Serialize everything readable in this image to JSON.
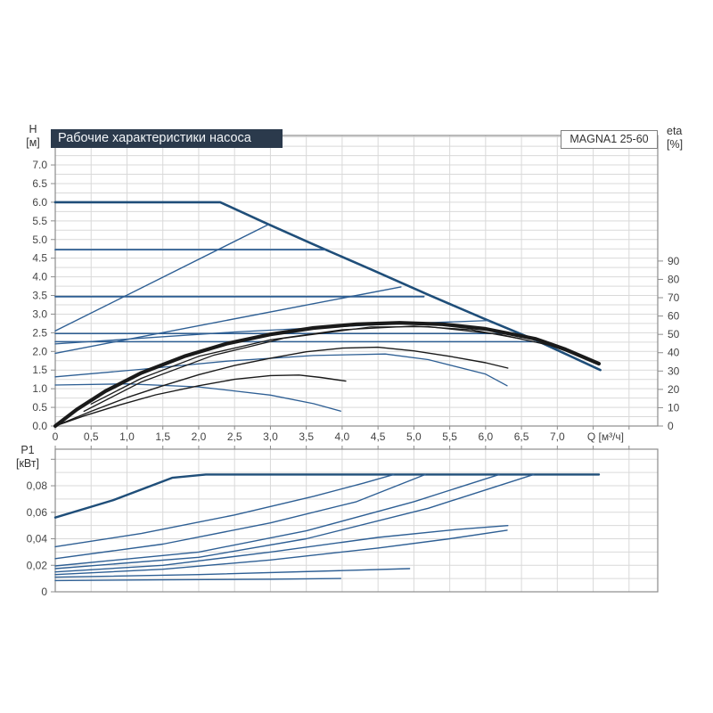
{
  "title_bar": {
    "text": "Рабочие характеристики насоса"
  },
  "model_badge": {
    "text": "MAGNA1 25-60"
  },
  "axis_corner_labels": {
    "h_line1": "H",
    "h_line2": "[м]",
    "eta_line1": "eta",
    "eta_line2": "[%]",
    "p1_line1": "P1",
    "p1_line2": "[кВт]",
    "q_label": "Q [м³/ч]"
  },
  "colors": {
    "title_bar_bg": "#2b3a4c",
    "curve_blue": "#2e5f94",
    "curve_blue_dark": "#1f4e79",
    "curve_black": "#1a1a1a",
    "grid": "#d9d9d9",
    "frame": "#8c8c8c",
    "tick_text": "#444444"
  },
  "chart_data": [
    {
      "id": "head_chart",
      "type": "line",
      "title": "Рабочие характеристики насоса",
      "x_axis": {
        "min": 0,
        "max": 8.4,
        "grid_step": 0.5,
        "tick_step": 0.5,
        "show_labels": true,
        "labels": [
          "0",
          "0,5",
          "1,0",
          "1,5",
          "2,0",
          "2,5",
          "3,0",
          "3,5",
          "4,0",
          "4,5",
          "5,0",
          "5,5",
          "6,0",
          "6,5",
          "7,0",
          "",
          ""
        ]
      },
      "y_left": {
        "name": "H [м]",
        "min": 0,
        "max": 7.79,
        "grid_step": 0.25,
        "tick_step": 0.5,
        "labels": [
          "0.0",
          "0.5",
          "1.0",
          "1.5",
          "2.0",
          "2.5",
          "3.0",
          "3.5",
          "4.0",
          "4.5",
          "5.0",
          "5.5",
          "6.0",
          "6.5",
          "7.0"
        ]
      },
      "y_right": {
        "name": "eta [%]",
        "min": 0,
        "max": 158.5,
        "tick_step": 10,
        "labels": [
          "0",
          "10",
          "20",
          "30",
          "40",
          "50",
          "60",
          "70",
          "80",
          "90"
        ]
      },
      "series": [
        {
          "name": "max-curve",
          "axis": "left",
          "color": "#1f4e79",
          "width": 2.6,
          "points": [
            [
              0,
              6.0
            ],
            [
              2.3,
              6.0
            ],
            [
              2.9,
              5.47
            ],
            [
              3.6,
              4.87
            ],
            [
              4.4,
              4.2
            ],
            [
              5.2,
              3.52
            ],
            [
              6.0,
              2.86
            ],
            [
              6.7,
              2.3
            ],
            [
              7.6,
              1.5
            ]
          ]
        },
        {
          "name": "prop-pressure-rise-high",
          "axis": "left",
          "color": "#2e5f94",
          "width": 1.4,
          "points": [
            [
              0,
              2.55
            ],
            [
              2.97,
              5.4
            ]
          ]
        },
        {
          "name": "prop-pressure-rise-mid",
          "axis": "left",
          "color": "#2e5f94",
          "width": 1.4,
          "points": [
            [
              0,
              1.95
            ],
            [
              4.82,
              3.73
            ]
          ]
        },
        {
          "name": "const-pressure-4-7",
          "axis": "left",
          "color": "#2e5f94",
          "width": 1.8,
          "points": [
            [
              0,
              4.73
            ],
            [
              3.76,
              4.73
            ]
          ]
        },
        {
          "name": "const-pressure-3-5",
          "axis": "left",
          "color": "#2e5f94",
          "width": 1.8,
          "points": [
            [
              0,
              3.47
            ],
            [
              5.14,
              3.47
            ]
          ]
        },
        {
          "name": "const-pressure-2-5",
          "axis": "left",
          "color": "#2e5f94",
          "width": 1.5,
          "points": [
            [
              0,
              2.48
            ],
            [
              6.43,
              2.48
            ]
          ]
        },
        {
          "name": "const-pressure-2-25",
          "axis": "left",
          "color": "#2e5f94",
          "width": 1.5,
          "points": [
            [
              0,
              2.26
            ],
            [
              6.68,
              2.26
            ]
          ]
        },
        {
          "name": "prop-pressure-rise-low",
          "axis": "left",
          "color": "#2e5f94",
          "width": 1.3,
          "points": [
            [
              0,
              2.2
            ],
            [
              2.5,
              2.52
            ],
            [
              4.5,
              2.72
            ],
            [
              6.05,
              2.83
            ]
          ]
        },
        {
          "name": "speed-ii-curve",
          "axis": "left",
          "color": "#2e5f94",
          "width": 1.3,
          "points": [
            [
              0,
              1.32
            ],
            [
              1.2,
              1.52
            ],
            [
              2.4,
              1.74
            ],
            [
              3.6,
              1.89
            ],
            [
              4.6,
              1.93
            ],
            [
              5.2,
              1.78
            ],
            [
              6.0,
              1.39
            ],
            [
              6.3,
              1.08
            ]
          ]
        },
        {
          "name": "min-curve",
          "axis": "left",
          "color": "#2e5f94",
          "width": 1.3,
          "points": [
            [
              0,
              1.1
            ],
            [
              1.0,
              1.13
            ],
            [
              2.0,
              1.05
            ],
            [
              3.0,
              0.83
            ],
            [
              3.6,
              0.6
            ],
            [
              3.98,
              0.4
            ]
          ]
        },
        {
          "name": "eta-max-band",
          "axis": "right",
          "color": "#1a1a1a",
          "width": 4.2,
          "points": [
            [
              0,
              0
            ],
            [
              0.3,
              9
            ],
            [
              0.7,
              19
            ],
            [
              1.2,
              29
            ],
            [
              1.8,
              38
            ],
            [
              2.4,
              45
            ],
            [
              3.0,
              50
            ],
            [
              3.6,
              53.5
            ],
            [
              4.2,
              55.5
            ],
            [
              4.8,
              56.3
            ],
            [
              5.4,
              55.5
            ],
            [
              6.0,
              53
            ],
            [
              6.7,
              47.5
            ],
            [
              7.1,
              42
            ],
            [
              7.58,
              34
            ]
          ]
        },
        {
          "name": "eta-max-band-strand-1",
          "axis": "right",
          "color": "#1a1a1a",
          "width": 1.3,
          "points": [
            [
              0.5,
              12
            ],
            [
              1.2,
              26
            ],
            [
              2.0,
              38
            ],
            [
              3.0,
              47
            ],
            [
              4.0,
              52.5
            ],
            [
              5.0,
              54.5
            ],
            [
              5.8,
              52.5
            ],
            [
              6.5,
              47.5
            ]
          ]
        },
        {
          "name": "eta-max-band-strand-2",
          "axis": "right",
          "color": "#1a1a1a",
          "width": 1.3,
          "points": [
            [
              0.4,
              8
            ],
            [
              1.2,
              24
            ],
            [
              2.2,
              38.5
            ],
            [
              3.2,
              48
            ],
            [
              4.4,
              54
            ],
            [
              5.2,
              54.2
            ],
            [
              6.2,
              50
            ],
            [
              6.9,
              44
            ],
            [
              7.5,
              35.5
            ]
          ]
        },
        {
          "name": "eta-speed-ii",
          "axis": "right",
          "color": "#1a1a1a",
          "width": 1.4,
          "points": [
            [
              0,
              0
            ],
            [
              0.5,
              8
            ],
            [
              1.0,
              15.5
            ],
            [
              1.5,
              22
            ],
            [
              2.0,
              28
            ],
            [
              2.5,
              33
            ],
            [
              3.0,
              37
            ],
            [
              3.5,
              40.5
            ],
            [
              4.0,
              42.5
            ],
            [
              4.5,
              43
            ],
            [
              5.0,
              41
            ],
            [
              5.5,
              38
            ],
            [
              6.0,
              34.5
            ],
            [
              6.31,
              31.6
            ]
          ]
        },
        {
          "name": "eta-min",
          "axis": "right",
          "color": "#1a1a1a",
          "width": 1.4,
          "points": [
            [
              0,
              0
            ],
            [
              0.4,
              5.5
            ],
            [
              0.9,
              11.5
            ],
            [
              1.4,
              17
            ],
            [
              2.0,
              22
            ],
            [
              2.5,
              25.5
            ],
            [
              3.0,
              27.5
            ],
            [
              3.4,
              27.8
            ],
            [
              3.7,
              26.5
            ],
            [
              4.05,
              24.5
            ]
          ]
        }
      ]
    },
    {
      "id": "power_chart",
      "type": "line",
      "title": "P1 [кВт]",
      "x_axis": {
        "min": 0,
        "max": 8.4,
        "grid_step": 0.5,
        "tick_step": 0.5,
        "show_labels": false,
        "labels": [
          "",
          "",
          "",
          "",
          "",
          "",
          "",
          "",
          "",
          "",
          "",
          "",
          "",
          "",
          "",
          "",
          ""
        ]
      },
      "y_left": {
        "name": "P1 [кВт]",
        "min": 0,
        "max": 0.1076,
        "grid_step": 0.01,
        "tick_step": 0.02,
        "labels": [
          "0",
          "0,02",
          "0,04",
          "0,06",
          "0,08",
          ""
        ]
      },
      "y_right": null,
      "series": [
        {
          "name": "p1-max",
          "axis": "left",
          "color": "#1f4e79",
          "width": 2.4,
          "points": [
            [
              0,
              0.056
            ],
            [
              0.8,
              0.069
            ],
            [
              1.63,
              0.086
            ],
            [
              2.1,
              0.0885
            ],
            [
              7.58,
              0.0885
            ]
          ]
        },
        {
          "name": "p1-const-pressure-4-7",
          "axis": "left",
          "color": "#2e5f94",
          "width": 1.4,
          "points": [
            [
              0,
              0.034
            ],
            [
              1.2,
              0.044
            ],
            [
              2.5,
              0.058
            ],
            [
              3.6,
              0.072
            ],
            [
              4.3,
              0.082
            ],
            [
              4.72,
              0.0885
            ]
          ]
        },
        {
          "name": "p1-const-pressure-3-5",
          "axis": "left",
          "color": "#2e5f94",
          "width": 1.4,
          "points": [
            [
              0,
              0.025
            ],
            [
              1.5,
              0.036
            ],
            [
              3.0,
              0.052
            ],
            [
              4.2,
              0.068
            ],
            [
              5.16,
              0.0885
            ]
          ]
        },
        {
          "name": "p1-const-pressure-2-5",
          "axis": "left",
          "color": "#2e5f94",
          "width": 1.4,
          "points": [
            [
              0,
              0.0195
            ],
            [
              2.0,
              0.03
            ],
            [
              3.5,
              0.046
            ],
            [
              5.0,
              0.068
            ],
            [
              6.19,
              0.0885
            ]
          ]
        },
        {
          "name": "p1-const-pressure-2-25",
          "axis": "left",
          "color": "#2e5f94",
          "width": 1.4,
          "points": [
            [
              0,
              0.0175
            ],
            [
              2.0,
              0.026
            ],
            [
              3.5,
              0.04
            ],
            [
              5.2,
              0.063
            ],
            [
              6.67,
              0.0885
            ]
          ]
        },
        {
          "name": "p1-speed-ii",
          "axis": "left",
          "color": "#2e5f94",
          "width": 1.4,
          "points": [
            [
              0,
              0.015
            ],
            [
              1.5,
              0.02
            ],
            [
              3.0,
              0.03
            ],
            [
              4.5,
              0.041
            ],
            [
              5.6,
              0.047
            ],
            [
              6.31,
              0.05
            ]
          ]
        },
        {
          "name": "p1-prop-pressure-low",
          "axis": "left",
          "color": "#2e5f94",
          "width": 1.4,
          "points": [
            [
              0,
              0.013
            ],
            [
              1.5,
              0.017
            ],
            [
              3.0,
              0.024
            ],
            [
              4.5,
              0.033
            ],
            [
              5.5,
              0.04
            ],
            [
              6.3,
              0.0465
            ]
          ]
        },
        {
          "name": "p1-low",
          "axis": "left",
          "color": "#2e5f94",
          "width": 1.4,
          "points": [
            [
              0,
              0.011
            ],
            [
              2.0,
              0.013
            ],
            [
              4.0,
              0.016
            ],
            [
              4.94,
              0.0175
            ]
          ]
        },
        {
          "name": "p1-min",
          "axis": "left",
          "color": "#2e5f94",
          "width": 1.4,
          "points": [
            [
              0,
              0.0085
            ],
            [
              1.5,
              0.009
            ],
            [
              3.0,
              0.0095
            ],
            [
              3.98,
              0.01
            ]
          ]
        }
      ]
    }
  ]
}
